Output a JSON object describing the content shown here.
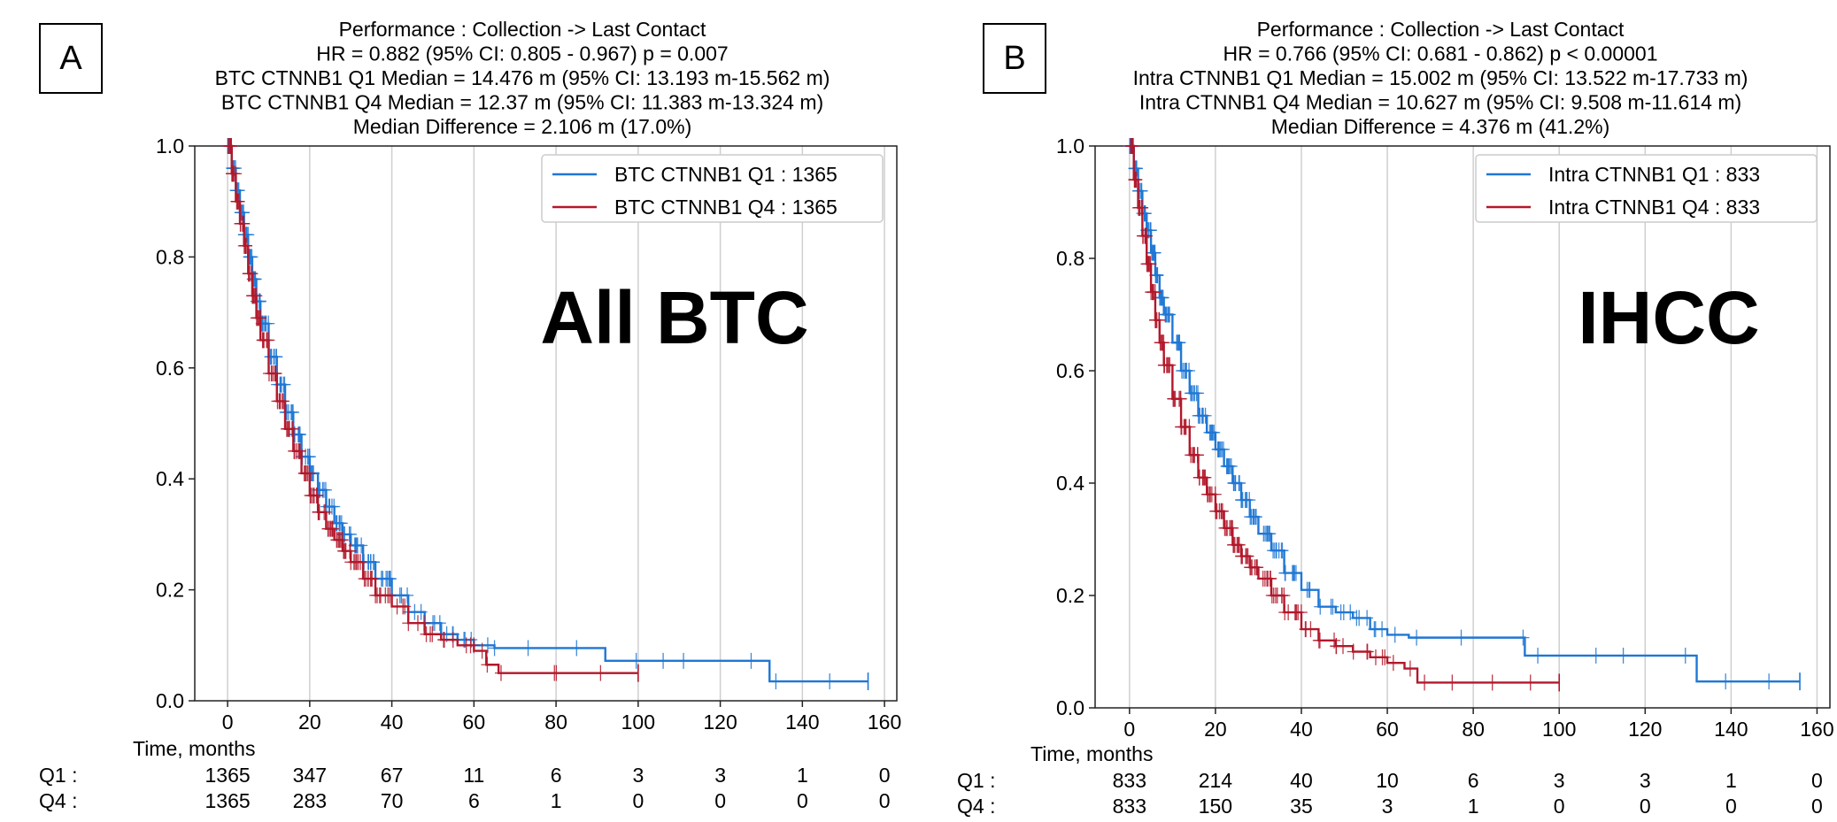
{
  "chart_data": [
    {
      "type": "line",
      "panel_label": "A",
      "title_lines": [
        "Performance : Collection -> Last Contact",
        "HR = 0.882 (95% CI: 0.805 - 0.967) p = 0.007",
        "BTC CTNNB1 Q1 Median = 14.476 m (95% CI: 13.193 m-15.562 m)",
        "BTC CTNNB1 Q4 Median = 12.37 m (95% CI: 11.383 m-13.324 m)",
        "Median Difference = 2.106 m (17.0%)"
      ],
      "annotation": "All BTC",
      "xlabel": "Time, months",
      "xlim": [
        -8,
        163
      ],
      "ylim": [
        0,
        1
      ],
      "xticks": [
        0,
        20,
        40,
        60,
        80,
        100,
        120,
        140,
        160
      ],
      "yticks": [
        "0.0",
        "0.2",
        "0.4",
        "0.6",
        "0.8",
        "1.0"
      ],
      "grid": "vertical",
      "legend_position": "top-right",
      "series": [
        {
          "name": "BTC CTNNB1 Q1 : 1365",
          "color": "#1f77d4",
          "x": [
            0,
            1,
            2,
            3,
            4,
            5,
            6,
            7,
            8,
            10,
            12,
            14,
            16,
            18,
            20,
            22,
            24,
            26,
            28,
            30,
            33,
            36,
            40,
            44,
            48,
            52,
            56,
            60,
            65,
            70,
            80,
            92,
            100,
            110,
            120,
            132,
            145,
            156
          ],
          "y": [
            1.0,
            0.96,
            0.92,
            0.88,
            0.84,
            0.8,
            0.76,
            0.72,
            0.68,
            0.62,
            0.57,
            0.52,
            0.48,
            0.44,
            0.41,
            0.38,
            0.35,
            0.32,
            0.3,
            0.28,
            0.25,
            0.22,
            0.19,
            0.16,
            0.14,
            0.12,
            0.11,
            0.1,
            0.095,
            0.095,
            0.095,
            0.072,
            0.072,
            0.072,
            0.072,
            0.035,
            0.035,
            0.035
          ]
        },
        {
          "name": "BTC CTNNB1 Q4 : 1365",
          "color": "#b2182b",
          "x": [
            0,
            1,
            2,
            3,
            4,
            5,
            6,
            7,
            8,
            10,
            12,
            14,
            16,
            18,
            20,
            22,
            24,
            26,
            28,
            30,
            33,
            36,
            40,
            44,
            48,
            52,
            56,
            60,
            63,
            66,
            70,
            80,
            90,
            100
          ],
          "y": [
            1.0,
            0.95,
            0.9,
            0.86,
            0.82,
            0.77,
            0.73,
            0.69,
            0.65,
            0.59,
            0.54,
            0.49,
            0.45,
            0.41,
            0.37,
            0.34,
            0.31,
            0.29,
            0.27,
            0.25,
            0.22,
            0.19,
            0.17,
            0.14,
            0.12,
            0.11,
            0.1,
            0.09,
            0.065,
            0.05,
            0.05,
            0.05,
            0.05,
            0.05
          ]
        }
      ],
      "at_risk": {
        "rows": [
          {
            "label": "Q1 :",
            "values": [
              "1365",
              "347",
              "67",
              "11",
              "6",
              "3",
              "3",
              "1",
              "0"
            ]
          },
          {
            "label": "Q4 :",
            "values": [
              "1365",
              "283",
              "70",
              "6",
              "1",
              "0",
              "0",
              "0",
              "0"
            ]
          }
        ]
      }
    },
    {
      "type": "line",
      "panel_label": "B",
      "title_lines": [
        "Performance : Collection -> Last Contact",
        "HR = 0.766 (95% CI: 0.681 - 0.862) p < 0.00001",
        "Intra CTNNB1 Q1 Median = 15.002 m (95% CI: 13.522 m-17.733 m)",
        "Intra CTNNB1 Q4 Median = 10.627 m (95% CI: 9.508 m-11.614 m)",
        "Median Difference = 4.376 m (41.2%)"
      ],
      "annotation": "IHCC",
      "xlabel": "Time, months",
      "xlim": [
        -8,
        163
      ],
      "ylim": [
        0,
        1
      ],
      "xticks": [
        0,
        20,
        40,
        60,
        80,
        100,
        120,
        140,
        160
      ],
      "yticks": [
        "0.0",
        "0.2",
        "0.4",
        "0.6",
        "0.8",
        "1.0"
      ],
      "grid": "vertical",
      "legend_position": "top-right",
      "series": [
        {
          "name": "Intra CTNNB1 Q1 : 833",
          "color": "#1f77d4",
          "x": [
            0,
            1,
            2,
            3,
            4,
            5,
            6,
            7,
            8,
            10,
            12,
            14,
            16,
            18,
            20,
            22,
            24,
            26,
            28,
            30,
            33,
            36,
            40,
            44,
            48,
            52,
            56,
            60,
            65,
            70,
            80,
            92,
            100,
            110,
            120,
            132,
            145,
            156
          ],
          "y": [
            1.0,
            0.96,
            0.92,
            0.88,
            0.85,
            0.81,
            0.77,
            0.73,
            0.7,
            0.65,
            0.6,
            0.56,
            0.52,
            0.49,
            0.46,
            0.43,
            0.4,
            0.37,
            0.34,
            0.31,
            0.28,
            0.24,
            0.21,
            0.18,
            0.17,
            0.16,
            0.14,
            0.13,
            0.125,
            0.125,
            0.125,
            0.093,
            0.093,
            0.093,
            0.093,
            0.047,
            0.047,
            0.047
          ]
        },
        {
          "name": "Intra CTNNB1 Q4 : 833",
          "color": "#b2182b",
          "x": [
            0,
            1,
            2,
            3,
            4,
            5,
            6,
            7,
            8,
            10,
            12,
            14,
            16,
            18,
            20,
            22,
            24,
            26,
            28,
            30,
            33,
            36,
            40,
            44,
            48,
            52,
            56,
            60,
            64,
            67,
            70,
            80,
            90,
            100
          ],
          "y": [
            1.0,
            0.94,
            0.89,
            0.84,
            0.79,
            0.74,
            0.69,
            0.65,
            0.61,
            0.55,
            0.5,
            0.45,
            0.41,
            0.38,
            0.35,
            0.32,
            0.29,
            0.27,
            0.25,
            0.23,
            0.2,
            0.17,
            0.14,
            0.12,
            0.11,
            0.1,
            0.09,
            0.08,
            0.07,
            0.045,
            0.045,
            0.045,
            0.045,
            0.045
          ]
        }
      ],
      "at_risk": {
        "rows": [
          {
            "label": "Q1 :",
            "values": [
              "833",
              "214",
              "40",
              "10",
              "6",
              "3",
              "3",
              "1",
              "0"
            ]
          },
          {
            "label": "Q4 :",
            "values": [
              "833",
              "150",
              "35",
              "3",
              "1",
              "0",
              "0",
              "0",
              "0"
            ]
          }
        ]
      }
    }
  ]
}
